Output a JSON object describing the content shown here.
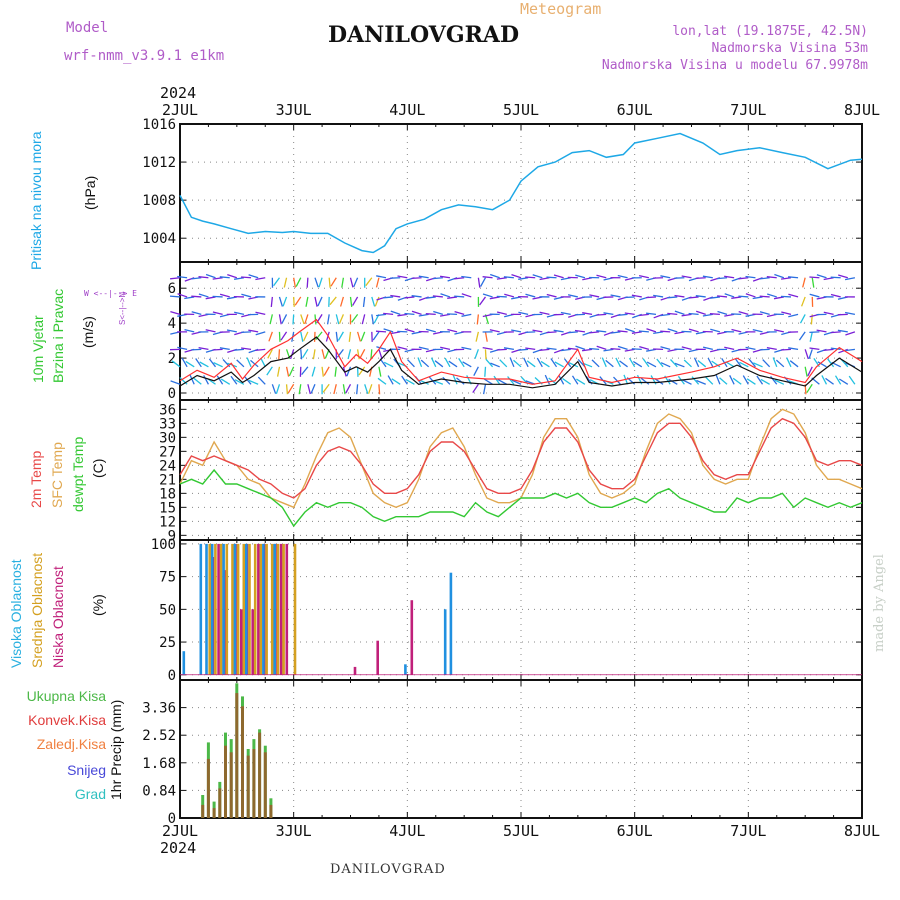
{
  "header": {
    "model_label": "Model",
    "model_name": "wrf-nmm_v3.9.1  e1km",
    "title": "DANILOVGRAD",
    "meteogram_label": "Meteogram",
    "lonlat": "lon,lat (19.1875E, 42.5N)",
    "elevation": "Nadmorska Visina 53m",
    "model_elevation": "Nadmorska Visina u modelu 67.9978m"
  },
  "footer": {
    "station": "DANILOVGRAD",
    "credit": "made by Angel"
  },
  "time_axis": {
    "year": "2024",
    "days": [
      "2JUL",
      "3JUL",
      "4JUL",
      "5JUL",
      "6JUL",
      "7JUL",
      "8JUL"
    ]
  },
  "panel_labels": {
    "pressure": "Pritisak na nivou mora",
    "pressure_unit": "(hPa)",
    "wind_1": "10m Vjetar",
    "wind_2": "Brzina i Pravac",
    "wind_unit": "(m/s)",
    "compass": "W <--|--> E",
    "compass_ns": "S<--|-->N",
    "temp_2m": "2m Temp",
    "temp_sfc": "SFC Temp",
    "temp_dew": "dewpt Temp",
    "temp_unit": "(C)",
    "cloud_high": "Visoka Oblacnost",
    "cloud_mid": "Srednja Oblacnost",
    "cloud_low": "Niska Oblacnost",
    "cloud_unit": "(%)",
    "precip_unit": "1hr Precip (mm)"
  },
  "precip_legend": [
    "Ukupna Kisa",
    "Konvek.Kisa",
    "Zaledj.Kisa",
    "Snijeg",
    "Grad"
  ],
  "colors": {
    "pressure": "#1ea8e6",
    "temp_2m": "#e84848",
    "temp_sfc": "#e0a850",
    "temp_dew": "#33c833",
    "wind_speed": "#111111",
    "wind_max": "#ff3030",
    "cloud_high": "#2090e0",
    "cloud_mid": "#d4a020",
    "cloud_low": "#c0207a",
    "precip_total": "#4cb848",
    "precip_conv": "#e03c3c",
    "precip_frz": "#f08040",
    "precip_snow": "#4848d8",
    "precip_grad": "#30c0c0",
    "header_text": "#b05cc8"
  },
  "chart_data": [
    {
      "type": "line",
      "name": "pressure",
      "x_days": [
        0,
        0.1,
        0.2,
        0.3,
        0.45,
        0.6,
        0.75,
        0.9,
        1.0,
        1.15,
        1.3,
        1.45,
        1.6,
        1.7,
        1.8,
        1.9,
        2.0,
        2.15,
        2.3,
        2.45,
        2.6,
        2.75,
        2.9,
        3.0,
        3.15,
        3.3,
        3.45,
        3.6,
        3.75,
        3.9,
        4.0,
        4.2,
        4.4,
        4.6,
        4.75,
        4.9,
        5.1,
        5.3,
        5.5,
        5.7,
        5.9,
        6.0
      ],
      "y": [
        1008.5,
        1006.2,
        1005.8,
        1005.5,
        1005.0,
        1004.5,
        1004.7,
        1004.6,
        1004.7,
        1004.5,
        1004.5,
        1003.5,
        1002.7,
        1002.5,
        1003.2,
        1005.0,
        1005.5,
        1006.0,
        1007.0,
        1007.5,
        1007.3,
        1007.0,
        1008.0,
        1010.0,
        1011.5,
        1012.0,
        1013.0,
        1013.2,
        1012.5,
        1012.8,
        1014.0,
        1014.5,
        1015.0,
        1014.0,
        1012.8,
        1013.2,
        1013.5,
        1013.0,
        1012.5,
        1011.3,
        1012.2,
        1012.3
      ],
      "ylabel": "(hPa)",
      "yticks": [
        1004,
        1008,
        1012,
        1016
      ],
      "ylim": [
        1001.5,
        1016
      ],
      "grid": true
    },
    {
      "type": "line",
      "name": "wind",
      "series": [
        {
          "values": [
            0.7,
            1.3,
            0.9,
            1.7,
            0.8,
            1.6,
            2.5,
            3.0,
            3.5,
            4.2,
            3.3,
            1.5,
            2.2,
            1.7,
            2.5,
            3.5,
            1.8,
            0.7,
            1.2,
            0.9,
            0.8,
            0.8,
            0.5,
            0.7,
            2.5,
            0.9,
            0.6,
            0.9,
            0.8,
            1.2,
            1.5,
            2.0,
            1.3,
            0.9,
            0.6,
            1.5,
            2.6,
            1.8
          ]
        },
        {
          "values": [
            0.4,
            1.0,
            0.7,
            1.2,
            0.6,
            1.0,
            1.8,
            2.0,
            2.5,
            3.2,
            2.5,
            1.2,
            1.5,
            1.2,
            1.8,
            2.5,
            1.3,
            0.5,
            0.8,
            0.6,
            0.5,
            0.5,
            0.3,
            0.5,
            1.8,
            0.6,
            0.4,
            0.6,
            0.6,
            0.8,
            1.0,
            1.6,
            1.0,
            0.7,
            0.4,
            1.0,
            2.0,
            1.2
          ]
        }
      ],
      "x_days": [
        0,
        0.15,
        0.3,
        0.45,
        0.55,
        0.65,
        0.8,
        0.95,
        1.05,
        1.2,
        1.3,
        1.45,
        1.55,
        1.65,
        1.75,
        1.85,
        1.95,
        2.1,
        2.3,
        2.5,
        2.7,
        2.9,
        3.1,
        3.3,
        3.5,
        3.6,
        3.8,
        4.0,
        4.2,
        4.5,
        4.7,
        4.9,
        5.1,
        5.3,
        5.5,
        5.6,
        5.8,
        6.0
      ],
      "ylabel": "(m/s)",
      "yticks": [
        0,
        2,
        4,
        6
      ],
      "ylim": [
        -0.4,
        7.5
      ],
      "grid": true
    },
    {
      "type": "line",
      "name": "temperature",
      "x_days": [
        0,
        0.1,
        0.2,
        0.3,
        0.4,
        0.5,
        0.6,
        0.7,
        0.8,
        0.9,
        1.0,
        1.1,
        1.2,
        1.3,
        1.4,
        1.5,
        1.6,
        1.7,
        1.8,
        1.9,
        2.0,
        2.1,
        2.2,
        2.3,
        2.4,
        2.5,
        2.6,
        2.7,
        2.8,
        2.9,
        3.0,
        3.1,
        3.2,
        3.3,
        3.4,
        3.5,
        3.6,
        3.7,
        3.8,
        3.9,
        4.0,
        4.1,
        4.2,
        4.3,
        4.4,
        4.5,
        4.6,
        4.7,
        4.8,
        4.9,
        5.0,
        5.1,
        5.2,
        5.3,
        5.4,
        5.5,
        5.6,
        5.7,
        5.8,
        5.9,
        6.0
      ],
      "series": [
        {
          "values": [
            22,
            26,
            25,
            26,
            25,
            24,
            23,
            21,
            20,
            18,
            17,
            19,
            24,
            27,
            28,
            27,
            24,
            20,
            18,
            18,
            19,
            22,
            27,
            29,
            29,
            27,
            23,
            19,
            18,
            18,
            19,
            23,
            29,
            32,
            32,
            29,
            23,
            20,
            19,
            19,
            21,
            26,
            31,
            33,
            33,
            30,
            25,
            22,
            21,
            22,
            22,
            27,
            32,
            34,
            33,
            30,
            25,
            24,
            25,
            25,
            24
          ]
        },
        {
          "values": [
            20,
            25,
            24,
            29,
            25,
            24,
            21,
            20,
            17,
            16,
            15,
            20,
            26,
            31,
            32,
            30,
            24,
            18,
            16,
            15,
            16,
            21,
            28,
            31,
            32,
            28,
            22,
            17,
            16,
            16,
            17,
            22,
            30,
            34,
            34,
            30,
            22,
            18,
            17,
            18,
            20,
            27,
            33,
            35,
            34,
            31,
            24,
            21,
            20,
            21,
            21,
            28,
            34,
            36,
            35,
            31,
            24,
            21,
            21,
            20,
            19
          ]
        },
        {
          "values": [
            20,
            21,
            20,
            23,
            20,
            20,
            19,
            18,
            17,
            15,
            11,
            14,
            16,
            15,
            16,
            16,
            15,
            13,
            12,
            13,
            13,
            13,
            14,
            14,
            14,
            13,
            16,
            14,
            13,
            15,
            17,
            17,
            17,
            18,
            17,
            18,
            16,
            15,
            15,
            16,
            17,
            16,
            18,
            19,
            17,
            16,
            15,
            14,
            14,
            17,
            16,
            17,
            17,
            18,
            15,
            17,
            16,
            15,
            16,
            15,
            16
          ]
        }
      ],
      "ylabel": "(C)",
      "yticks": [
        9,
        12,
        15,
        18,
        21,
        24,
        27,
        30,
        33,
        36
      ],
      "ylim": [
        8,
        38
      ],
      "grid": true
    },
    {
      "type": "bar",
      "name": "cloud_cover",
      "x_days": [
        0.05,
        0.2,
        0.25,
        0.3,
        0.35,
        0.4,
        0.45,
        0.5,
        0.55,
        0.6,
        0.65,
        0.7,
        0.75,
        0.8,
        0.85,
        0.9,
        1.0,
        1.5,
        1.7,
        2.0,
        2.35,
        2.4
      ],
      "series": [
        {
          "values": [
            18,
            100,
            100,
            100,
            0,
            100,
            0,
            100,
            0,
            100,
            0,
            0,
            100,
            0,
            100,
            0,
            0,
            0,
            0,
            8,
            50,
            78
          ]
        },
        {
          "values": [
            0,
            0,
            100,
            100,
            100,
            100,
            100,
            100,
            100,
            100,
            100,
            100,
            100,
            100,
            100,
            100,
            100,
            0,
            0,
            0,
            0,
            0
          ]
        },
        {
          "values": [
            0,
            0,
            90,
            100,
            80,
            0,
            100,
            50,
            100,
            50,
            100,
            100,
            0,
            100,
            100,
            100,
            0,
            6,
            26,
            57,
            0,
            0
          ]
        }
      ],
      "ylabel": "(%)",
      "yticks": [
        0,
        25,
        50,
        75,
        100
      ],
      "ylim": [
        -4,
        103
      ],
      "grid": true
    },
    {
      "type": "bar",
      "name": "precipitation",
      "x_days": [
        0.2,
        0.25,
        0.3,
        0.35,
        0.4,
        0.45,
        0.5,
        0.55,
        0.6,
        0.65,
        0.7,
        0.75,
        0.8
      ],
      "series": [
        {
          "values": [
            0.7,
            2.3,
            0.5,
            1.1,
            2.6,
            2.4,
            4.1,
            3.7,
            2.1,
            2.4,
            2.7,
            2.2,
            0.6
          ]
        },
        {
          "values": [
            0.4,
            1.8,
            0.3,
            0.9,
            2.2,
            2.0,
            3.8,
            3.4,
            1.9,
            2.1,
            2.6,
            2.0,
            0.4
          ]
        }
      ],
      "ylabel": "1hr Precip (mm)",
      "yticks": [
        0,
        0.84,
        1.68,
        2.52,
        3.36
      ],
      "ylim": [
        0,
        4.2
      ],
      "grid": true
    }
  ]
}
